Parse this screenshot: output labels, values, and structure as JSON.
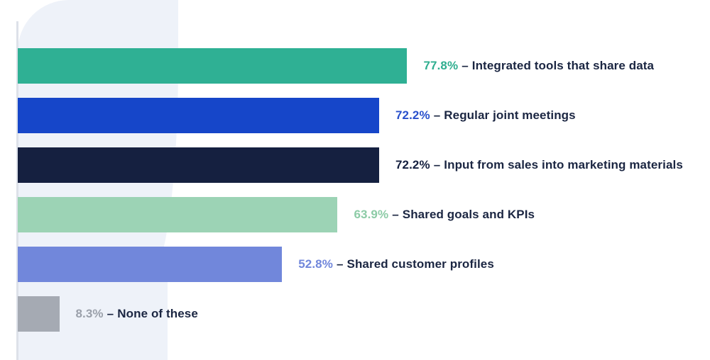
{
  "chart_data": {
    "type": "bar",
    "orientation": "horizontal",
    "title": "",
    "xlabel": "",
    "ylabel": "",
    "xlim": [
      0,
      100
    ],
    "grid": false,
    "legend": "none",
    "separator": "–",
    "categories": [
      "Integrated tools that share data",
      "Regular joint  meetings",
      "Input from sales into marketing materials",
      "Shared goals and KPIs",
      "Shared customer profiles",
      "None of these"
    ],
    "values": [
      77.8,
      72.2,
      72.2,
      63.9,
      52.8,
      8.3
    ],
    "rows": [
      {
        "value": 77.8,
        "pct_label": "77.8%",
        "label": "Integrated tools that share data",
        "bar_color": "#2FB094",
        "pct_color": "#2FAE8F"
      },
      {
        "value": 72.2,
        "pct_label": "72.2%",
        "label": "Regular joint  meetings",
        "bar_color": "#1646C9",
        "pct_color": "#2950CC"
      },
      {
        "value": 72.2,
        "pct_label": "72.2%",
        "label": "Input from sales into marketing materials",
        "bar_color": "#152040",
        "pct_color": "#152040"
      },
      {
        "value": 63.9,
        "pct_label": "63.9%",
        "label": "Shared goals and KPIs",
        "bar_color": "#9CD3B5",
        "pct_color": "#8CCBA6"
      },
      {
        "value": 52.8,
        "pct_label": "52.8%",
        "label": "Shared customer profiles",
        "bar_color": "#7187DB",
        "pct_color": "#7187DB"
      },
      {
        "value": 8.3,
        "pct_label": "8.3%",
        "label": "None of these",
        "bar_color": "#A5AAB3",
        "pct_color": "#9AA0AA"
      }
    ]
  },
  "colors": {
    "background": "#FFFFFF",
    "blob": "#EEF2F9",
    "axis": "#DDE1E9",
    "text": "#1B2642"
  }
}
